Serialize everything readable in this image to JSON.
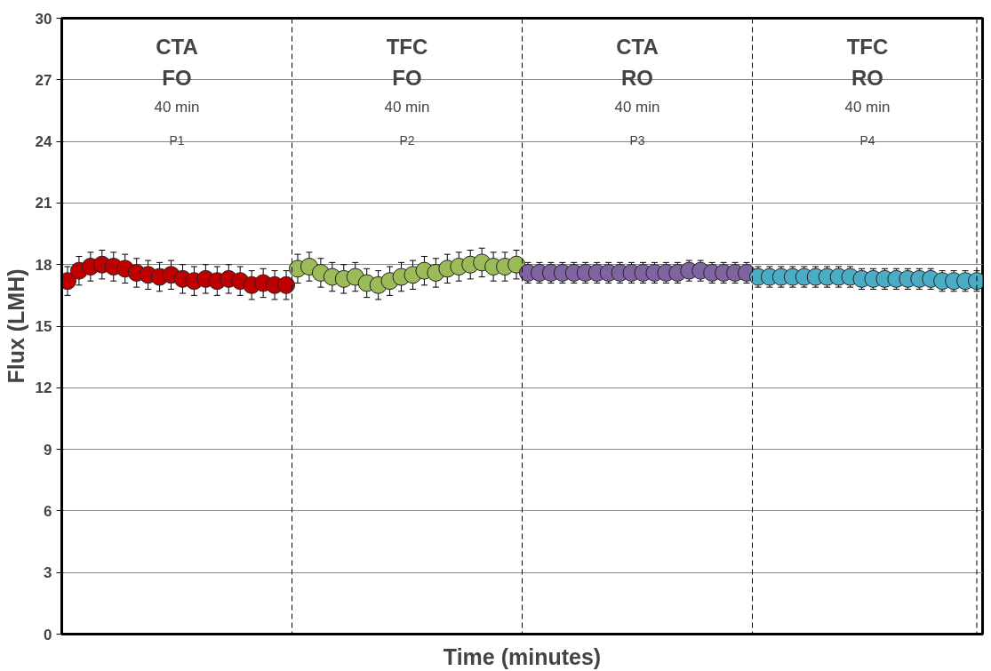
{
  "chart_data": {
    "type": "scatter",
    "xlabel": "Time (minutes)",
    "ylabel": "Flux (LMH)",
    "categories": [
      null,
      null,
      null,
      null,
      null,
      null,
      null,
      null,
      null,
      null,
      null,
      null,
      null,
      null,
      null,
      null,
      null,
      null,
      null,
      null,
      null,
      null,
      null,
      null,
      null,
      null,
      null,
      null,
      null,
      null,
      null,
      null,
      null,
      null,
      null,
      null,
      null,
      null,
      null,
      null,
      null,
      null,
      null,
      null,
      null,
      null,
      null,
      null,
      null,
      null,
      null,
      null,
      null,
      null,
      null,
      null,
      null,
      null,
      null,
      null,
      null,
      null,
      null,
      null,
      null,
      null,
      null,
      null,
      null,
      null,
      null,
      null,
      null,
      null,
      null,
      null,
      null,
      null,
      null,
      null
    ],
    "series": [
      {
        "color": "#c00000",
        "values": [
          17.2,
          17.7,
          17.9,
          18.0,
          17.9,
          17.8,
          17.6,
          17.5,
          17.4,
          17.5,
          17.3,
          17.2,
          17.3,
          17.2,
          17.3,
          17.2,
          17.0,
          17.1,
          17.0,
          17.0,
          null,
          null,
          null,
          null,
          null,
          null,
          null,
          null,
          null,
          null,
          null,
          null,
          null,
          null,
          null,
          null,
          null,
          null,
          null,
          null,
          null,
          null,
          null,
          null,
          null,
          null,
          null,
          null,
          null,
          null,
          null,
          null,
          null,
          null,
          null,
          null,
          null,
          null,
          null,
          null,
          null,
          null,
          null,
          null,
          null,
          null,
          null,
          null,
          null,
          null,
          null,
          null,
          null,
          null,
          null,
          null,
          null,
          null,
          null,
          null
        ],
        "errors": [
          0.7,
          0.7,
          0.7,
          0.7,
          0.7,
          0.7,
          0.7,
          0.7,
          0.7,
          0.7,
          0.7,
          0.7,
          0.7,
          0.7,
          0.7,
          0.7,
          0.7,
          0.7,
          0.7,
          0.7,
          null,
          null,
          null,
          null,
          null,
          null,
          null,
          null,
          null,
          null,
          null,
          null,
          null,
          null,
          null,
          null,
          null,
          null,
          null,
          null,
          null,
          null,
          null,
          null,
          null,
          null,
          null,
          null,
          null,
          null,
          null,
          null,
          null,
          null,
          null,
          null,
          null,
          null,
          null,
          null,
          null,
          null,
          null,
          null,
          null,
          null,
          null,
          null,
          null,
          null,
          null,
          null,
          null,
          null,
          null,
          null,
          null,
          null,
          null,
          null
        ]
      },
      {
        "color": "#9bbb59",
        "values": [
          null,
          null,
          null,
          null,
          null,
          null,
          null,
          null,
          null,
          null,
          null,
          null,
          null,
          null,
          null,
          null,
          null,
          null,
          null,
          null,
          17.8,
          17.9,
          17.6,
          17.4,
          17.3,
          17.4,
          17.1,
          17.0,
          17.2,
          17.4,
          17.5,
          17.7,
          17.6,
          17.8,
          17.9,
          18.0,
          18.1,
          17.9,
          17.9,
          18.0,
          null,
          null,
          null,
          null,
          null,
          null,
          null,
          null,
          null,
          null,
          null,
          null,
          null,
          null,
          null,
          null,
          null,
          null,
          null,
          null,
          null,
          null,
          null,
          null,
          null,
          null,
          null,
          null,
          null,
          null,
          null,
          null,
          null,
          null,
          null,
          null,
          null,
          null,
          null,
          null
        ],
        "errors": [
          null,
          null,
          null,
          null,
          null,
          null,
          null,
          null,
          null,
          null,
          null,
          null,
          null,
          null,
          null,
          null,
          null,
          null,
          null,
          null,
          0.7,
          0.7,
          0.7,
          0.7,
          0.7,
          0.7,
          0.7,
          0.7,
          0.7,
          0.7,
          0.7,
          0.7,
          0.7,
          0.7,
          0.7,
          0.7,
          0.7,
          0.7,
          0.7,
          0.7,
          null,
          null,
          null,
          null,
          null,
          null,
          null,
          null,
          null,
          null,
          null,
          null,
          null,
          null,
          null,
          null,
          null,
          null,
          null,
          null,
          null,
          null,
          null,
          null,
          null,
          null,
          null,
          null,
          null,
          null,
          null,
          null,
          null,
          null,
          null,
          null,
          null,
          null,
          null,
          null
        ]
      },
      {
        "color": "#8064a2",
        "values": [
          null,
          null,
          null,
          null,
          null,
          null,
          null,
          null,
          null,
          null,
          null,
          null,
          null,
          null,
          null,
          null,
          null,
          null,
          null,
          null,
          null,
          null,
          null,
          null,
          null,
          null,
          null,
          null,
          null,
          null,
          null,
          null,
          null,
          null,
          null,
          null,
          null,
          null,
          null,
          null,
          17.6,
          17.6,
          17.6,
          17.6,
          17.6,
          17.6,
          17.6,
          17.6,
          17.6,
          17.6,
          17.6,
          17.6,
          17.6,
          17.6,
          17.7,
          17.7,
          17.6,
          17.6,
          17.6,
          17.6,
          null,
          null,
          null,
          null,
          null,
          null,
          null,
          null,
          null,
          null,
          null,
          null,
          null,
          null,
          null,
          null,
          null,
          null,
          null,
          null
        ],
        "errors": [
          null,
          null,
          null,
          null,
          null,
          null,
          null,
          null,
          null,
          null,
          null,
          null,
          null,
          null,
          null,
          null,
          null,
          null,
          null,
          null,
          null,
          null,
          null,
          null,
          null,
          null,
          null,
          null,
          null,
          null,
          null,
          null,
          null,
          null,
          null,
          null,
          null,
          null,
          null,
          null,
          0.5,
          0.5,
          0.5,
          0.5,
          0.5,
          0.5,
          0.5,
          0.5,
          0.5,
          0.5,
          0.5,
          0.5,
          0.5,
          0.5,
          0.5,
          0.5,
          0.5,
          0.5,
          0.5,
          0.5,
          null,
          null,
          null,
          null,
          null,
          null,
          null,
          null,
          null,
          null,
          null,
          null,
          null,
          null,
          null,
          null,
          null,
          null,
          null,
          null
        ]
      },
      {
        "color": "#4bacc6",
        "values": [
          null,
          null,
          null,
          null,
          null,
          null,
          null,
          null,
          null,
          null,
          null,
          null,
          null,
          null,
          null,
          null,
          null,
          null,
          null,
          null,
          null,
          null,
          null,
          null,
          null,
          null,
          null,
          null,
          null,
          null,
          null,
          null,
          null,
          null,
          null,
          null,
          null,
          null,
          null,
          null,
          null,
          null,
          null,
          null,
          null,
          null,
          null,
          null,
          null,
          null,
          null,
          null,
          null,
          null,
          null,
          null,
          null,
          null,
          null,
          null,
          17.4,
          17.4,
          17.4,
          17.4,
          17.4,
          17.4,
          17.4,
          17.4,
          17.4,
          17.3,
          17.3,
          17.3,
          17.3,
          17.3,
          17.3,
          17.3,
          17.2,
          17.2,
          17.2,
          17.2
        ],
        "errors": [
          null,
          null,
          null,
          null,
          null,
          null,
          null,
          null,
          null,
          null,
          null,
          null,
          null,
          null,
          null,
          null,
          null,
          null,
          null,
          null,
          null,
          null,
          null,
          null,
          null,
          null,
          null,
          null,
          null,
          null,
          null,
          null,
          null,
          null,
          null,
          null,
          null,
          null,
          null,
          null,
          null,
          null,
          null,
          null,
          null,
          null,
          null,
          null,
          null,
          null,
          null,
          null,
          null,
          null,
          null,
          null,
          null,
          null,
          null,
          null,
          0.5,
          0.5,
          0.5,
          0.5,
          0.5,
          0.5,
          0.5,
          0.5,
          0.5,
          0.5,
          0.5,
          0.5,
          0.5,
          0.5,
          0.5,
          0.5,
          0.5,
          0.5,
          0.5,
          0.5
        ]
      }
    ],
    "annotations": [
      "CTA",
      "TFC",
      "CTA",
      "TFC",
      "FO",
      "FO",
      "RO",
      "RO",
      "40 min",
      "40 min",
      "40 min",
      "40 min",
      "P1",
      "P2",
      "P3",
      "P4"
    ],
    "ylim": [
      0,
      30
    ],
    "yticks": [
      0,
      3,
      6,
      9,
      12,
      15,
      18,
      21,
      24,
      27,
      30
    ],
    "grid": "y",
    "marker": "circle",
    "tick_labels": "y"
  }
}
